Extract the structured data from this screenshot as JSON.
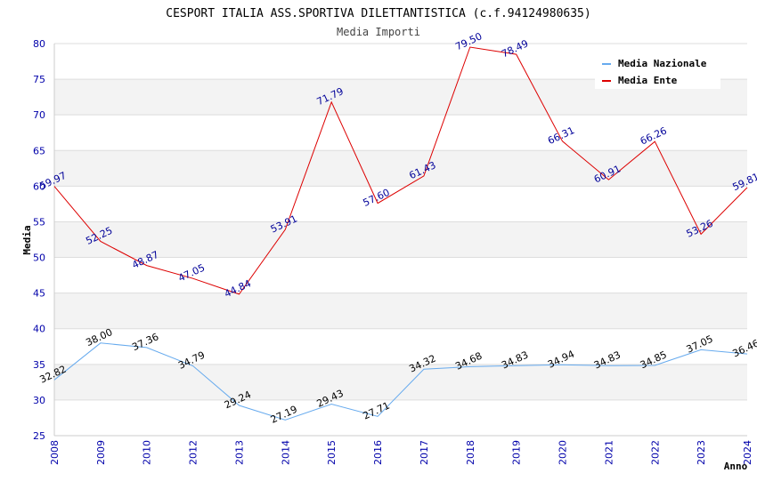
{
  "chart_data": {
    "type": "line",
    "title": "CESPORT ITALIA ASS.SPORTIVA DILETTANTISTICA (c.f.94124980635)",
    "subtitle": "Media Importi",
    "xlabel": "Anno",
    "ylabel": "Media",
    "ylim": [
      25,
      80
    ],
    "ytick_step": 5,
    "grid": "horizontal bands",
    "legend_position": "top-right",
    "categories": [
      "2008",
      "2009",
      "2010",
      "2012",
      "2013",
      "2014",
      "2015",
      "2016",
      "2017",
      "2018",
      "2019",
      "2020",
      "2021",
      "2022",
      "2023",
      "2024"
    ],
    "series": [
      {
        "name": "Media Nazionale",
        "color": "#66aaee",
        "label_color": "#000000",
        "values": [
          32.82,
          38.0,
          37.36,
          34.79,
          29.24,
          27.19,
          29.43,
          27.71,
          34.32,
          34.68,
          34.83,
          34.94,
          34.83,
          34.85,
          37.05,
          36.46
        ],
        "labels": [
          "32.82",
          "38.00",
          "37.36",
          "34.79",
          "29.24",
          "27.19",
          "29.43",
          "27.71",
          "34.32",
          "34.68",
          "34.83",
          "34.94",
          "34.83",
          "34.85",
          "37.05",
          "36.46"
        ]
      },
      {
        "name": "Media Ente",
        "color": "#dd0000",
        "label_color": "#000099",
        "values": [
          59.97,
          52.25,
          48.87,
          47.05,
          44.84,
          53.91,
          71.79,
          57.6,
          61.43,
          79.5,
          78.49,
          66.31,
          60.91,
          66.26,
          53.26,
          59.81
        ],
        "labels": [
          "59.97",
          "52.25",
          "48.87",
          "47.05",
          "44.84",
          "53.91",
          "71.79",
          "57.60",
          "61.43",
          "79.50",
          "78.49",
          "66.31",
          "60.91",
          "66.26",
          "53.26",
          "59.81"
        ]
      }
    ]
  }
}
